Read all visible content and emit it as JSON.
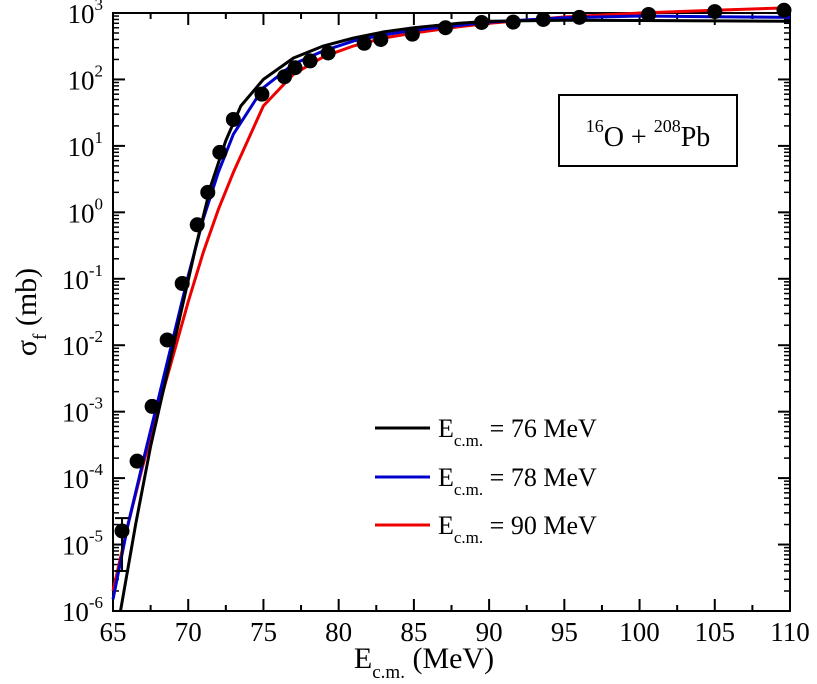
{
  "chart_data": {
    "type": "line",
    "yscale": "log",
    "xlabel": {
      "main": "E",
      "sub": "c.m.",
      "tail": " (MeV)"
    },
    "ylabel": {
      "main": "σ",
      "sub": "f",
      "tail": " (mb)"
    },
    "xlim": [
      65,
      110
    ],
    "ylim": [
      1e-06,
      1000
    ],
    "x_ticks": [
      65,
      70,
      75,
      80,
      85,
      90,
      95,
      100,
      105,
      110
    ],
    "x_tick_labels": [
      "65",
      "70",
      "75",
      "80",
      "85",
      "90",
      "95",
      "100",
      "105",
      "110"
    ],
    "y_ticks": [
      {
        "value": 1e-06,
        "base": "10",
        "exp": "-6"
      },
      {
        "value": 1e-05,
        "base": "10",
        "exp": "-5"
      },
      {
        "value": 0.0001,
        "base": "10",
        "exp": "-4"
      },
      {
        "value": 0.001,
        "base": "10",
        "exp": "-3"
      },
      {
        "value": 0.01,
        "base": "10",
        "exp": "-2"
      },
      {
        "value": 0.1,
        "base": "10",
        "exp": "-1"
      },
      {
        "value": 1,
        "base": "10",
        "exp": "0"
      },
      {
        "value": 10,
        "base": "10",
        "exp": "1"
      },
      {
        "value": 100,
        "base": "10",
        "exp": "2"
      },
      {
        "value": 1000,
        "base": "10",
        "exp": "3"
      }
    ],
    "annotation": {
      "pre_sup": "16",
      "mid": "O + ",
      "mid_sup": "208",
      "tail": "Pb"
    },
    "legend": {
      "placement": "bottom-right"
    },
    "series": [
      {
        "name": "E c.m. = 76 MeV",
        "label_main": "E",
        "label_sub": "c.m.",
        "label_tail": " = 76 MeV",
        "color": "#000000",
        "x": [
          65.5,
          66.5,
          67.5,
          68.5,
          69.5,
          70.5,
          71.5,
          72.5,
          73.5,
          75.0,
          77.0,
          79.0,
          81.0,
          83.0,
          85.0,
          88.0,
          90.0,
          95.0,
          100.0,
          105.0,
          110.0
        ],
        "y": [
          1e-06,
          2e-05,
          0.0003,
          0.003,
          0.03,
          0.3,
          2.5,
          12,
          40,
          100,
          210,
          320,
          420,
          520,
          600,
          700,
          750,
          780,
          770,
          760,
          750
        ]
      },
      {
        "name": "E c.m. = 78 MeV",
        "label_main": "E",
        "label_sub": "c.m.",
        "label_tail": " = 78 MeV",
        "color": "#0000cc",
        "x": [
          65.0,
          66.0,
          67.0,
          68.0,
          69.0,
          70.0,
          71.0,
          72.0,
          73.0,
          75.0,
          77.0,
          79.0,
          81.0,
          83.0,
          85.0,
          88.0,
          90.0,
          95.0,
          100.0,
          105.0,
          110.0
        ],
        "y": [
          1.5e-06,
          2e-05,
          0.00018,
          0.0015,
          0.013,
          0.11,
          0.8,
          4,
          15,
          75,
          170,
          270,
          380,
          470,
          550,
          650,
          730,
          850,
          900,
          880,
          860
        ]
      },
      {
        "name": "E c.m. = 90 MeV",
        "label_main": "E",
        "label_sub": "c.m.",
        "label_tail": " = 90 MeV",
        "color": "#ee0000",
        "x": [
          65.0,
          66.0,
          67.0,
          68.0,
          69.0,
          70.0,
          71.0,
          72.0,
          73.0,
          75.0,
          77.0,
          79.0,
          81.0,
          83.0,
          85.0,
          88.0,
          90.0,
          95.0,
          100.0,
          105.0,
          110.0
        ],
        "y": [
          2e-06,
          2e-05,
          0.00016,
          0.0011,
          0.007,
          0.045,
          0.25,
          1.1,
          4,
          40,
          120,
          220,
          320,
          420,
          500,
          620,
          700,
          870,
          1000,
          1100,
          1200
        ]
      }
    ],
    "data_points": {
      "name": "experiment",
      "x": [
        65.6,
        66.6,
        67.6,
        68.6,
        69.6,
        70.6,
        71.3,
        72.1,
        73.0,
        74.9,
        76.4,
        77.1,
        78.1,
        79.3,
        81.7,
        82.8,
        84.9,
        87.1,
        89.5,
        91.6,
        93.6,
        96.0,
        100.6,
        105.0,
        109.6
      ],
      "y": [
        1.6e-05,
        0.00018,
        0.0012,
        0.012,
        0.085,
        0.65,
        2.0,
        8.0,
        25,
        60,
        110,
        150,
        190,
        250,
        350,
        400,
        480,
        600,
        720,
        730,
        800,
        860,
        950,
        1050,
        1100
      ]
    },
    "error_bar": {
      "x": 65.6,
      "y_low": 4e-06,
      "y_high": 2.5e-05
    }
  }
}
